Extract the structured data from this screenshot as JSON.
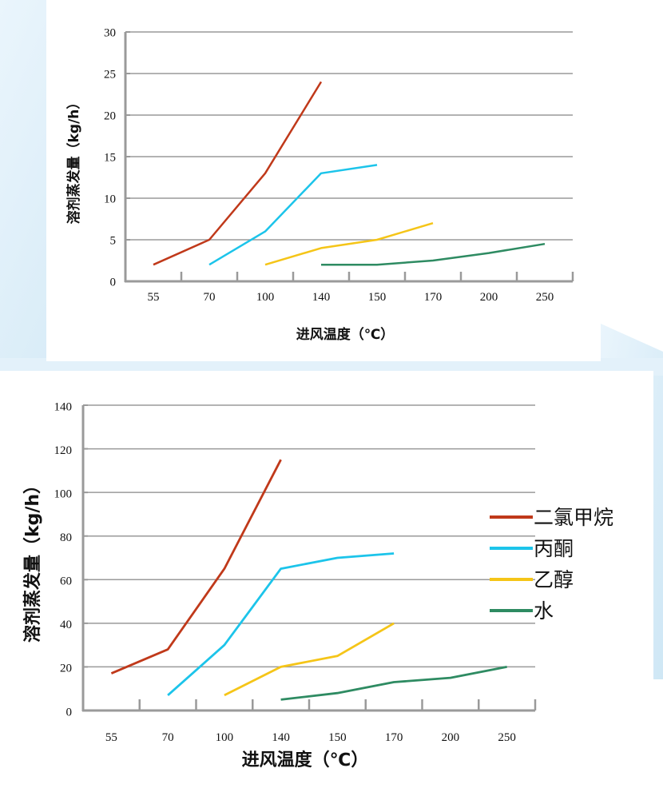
{
  "colors": {
    "dichloromethane": "#c0391a",
    "acetone": "#1cc4ea",
    "ethanol": "#f5c518",
    "water": "#2e8b62",
    "grid": "#9a9a9a",
    "background_accent": "#d6ecf8"
  },
  "chart_data": [
    {
      "type": "line",
      "title": "",
      "xlabel": "进风温度（℃）",
      "ylabel": "溶剂蒸发量（kg/h）",
      "categories": [
        "55",
        "70",
        "100",
        "140",
        "150",
        "170",
        "200",
        "250"
      ],
      "ylim": [
        0,
        30
      ],
      "yticks": [
        "0",
        "5",
        "10",
        "15",
        "20",
        "25",
        "30"
      ],
      "grid": true,
      "legend": "none",
      "series": [
        {
          "name": "二氯甲烷",
          "color_key": "dichloromethane",
          "values": [
            2,
            5,
            13,
            24,
            null,
            null,
            null,
            null
          ]
        },
        {
          "name": "丙酮",
          "color_key": "acetone",
          "values": [
            null,
            2,
            6,
            13,
            14,
            null,
            null,
            null
          ]
        },
        {
          "name": "乙醇",
          "color_key": "ethanol",
          "values": [
            null,
            null,
            2,
            4,
            5,
            7,
            null,
            null
          ]
        },
        {
          "name": "水",
          "color_key": "water",
          "values": [
            null,
            null,
            null,
            2,
            2,
            2.5,
            3.4,
            4.5
          ]
        }
      ]
    },
    {
      "type": "line",
      "title": "",
      "xlabel": "进风温度（℃）",
      "ylabel": "溶剂蒸发量（kg/h）",
      "categories": [
        "55",
        "70",
        "100",
        "140",
        "150",
        "170",
        "200",
        "250"
      ],
      "ylim": [
        0,
        140
      ],
      "yticks": [
        "0",
        "20",
        "40",
        "60",
        "80",
        "100",
        "120",
        "140"
      ],
      "grid": true,
      "legend": "right",
      "series": [
        {
          "name": "二氯甲烷",
          "color_key": "dichloromethane",
          "values": [
            17,
            28,
            65,
            115,
            null,
            null,
            null,
            null
          ]
        },
        {
          "name": "丙酮",
          "color_key": "acetone",
          "values": [
            null,
            7,
            30,
            65,
            70,
            72,
            null,
            null
          ]
        },
        {
          "name": "乙醇",
          "color_key": "ethanol",
          "values": [
            null,
            null,
            7,
            20,
            25,
            40,
            null,
            null
          ]
        },
        {
          "name": "水",
          "color_key": "water",
          "values": [
            null,
            null,
            null,
            5,
            8,
            13,
            15,
            20
          ]
        }
      ]
    }
  ]
}
